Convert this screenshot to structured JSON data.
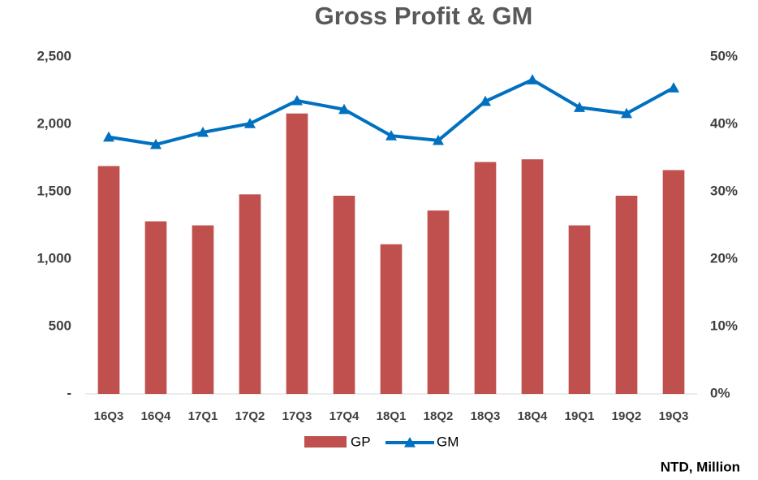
{
  "chart_data": {
    "type": "bar-line",
    "title": "Gross Profit & GM",
    "categories": [
      "16Q3",
      "16Q4",
      "17Q1",
      "17Q2",
      "17Q3",
      "17Q4",
      "18Q1",
      "18Q2",
      "18Q3",
      "18Q4",
      "19Q1",
      "19Q2",
      "19Q3"
    ],
    "series": [
      {
        "name": "GP",
        "type": "bar",
        "color": "#c0504d",
        "values": [
          1690,
          1280,
          1250,
          1480,
          2080,
          1470,
          1110,
          1360,
          1720,
          1740,
          1250,
          1470,
          1660
        ]
      },
      {
        "name": "GM",
        "type": "line",
        "axis": "y2",
        "color": "#0070c0",
        "values": [
          38.1,
          37.0,
          38.8,
          40.1,
          43.5,
          42.2,
          38.3,
          37.6,
          43.4,
          46.6,
          42.5,
          41.6,
          45.4
        ]
      }
    ],
    "ylim": [
      0,
      2500
    ],
    "yticks": [
      {
        "value": 0,
        "label": "-"
      },
      500,
      {
        "value": 1000,
        "label": "1,000"
      },
      {
        "value": 1500,
        "label": "1,500"
      },
      {
        "value": 2000,
        "label": "2,000"
      },
      {
        "value": 2500,
        "label": "2,500"
      }
    ],
    "y2lim": [
      0,
      50
    ],
    "y2ticks": [
      {
        "value": 0,
        "label": "0%"
      },
      {
        "value": 10,
        "label": "10%"
      },
      {
        "value": 20,
        "label": "20%"
      },
      {
        "value": 30,
        "label": "30%"
      },
      {
        "value": 40,
        "label": "40%"
      },
      {
        "value": 50,
        "label": "50%"
      }
    ],
    "grid": false,
    "legend": "bottom",
    "annotation": "NTD, Million"
  }
}
